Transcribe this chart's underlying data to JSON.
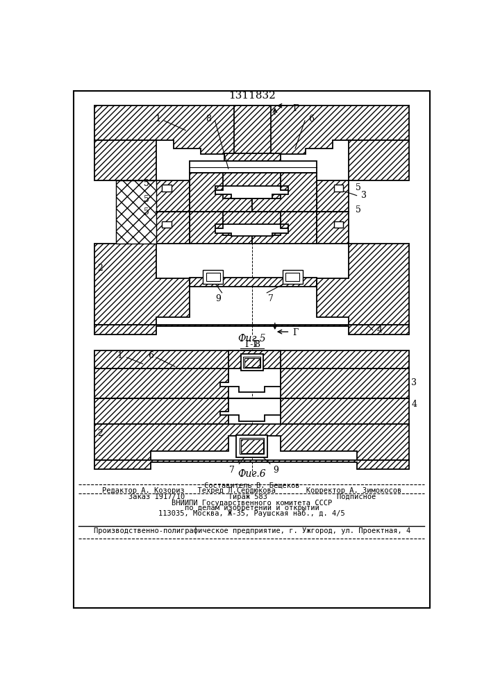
{
  "title": "1311832",
  "fig5_label": "Фиг.5",
  "fig6_label": "Фиг.6",
  "section_label": "Г-Г",
  "G_letter": "Г",
  "footer_lines": [
    "Составитель В. Бещеков",
    "Редактор А. Козориз   Техред Л.Сердюкова       Корректор А. Зимокосов",
    "Заказ 1917/10          Тираж 583                Подписное",
    "ВНИИПИ Государственного комитета СССР",
    "по делам изобретений и открытий",
    "113035, Москва, Ж-35, Раушская наб., д. 4/5",
    "Производственно-полиграфическое предприятие, г. Ужгород, ул. Проектная, 4"
  ],
  "line_color": "#000000",
  "bg_color": "#ffffff",
  "text_color": "#000000"
}
